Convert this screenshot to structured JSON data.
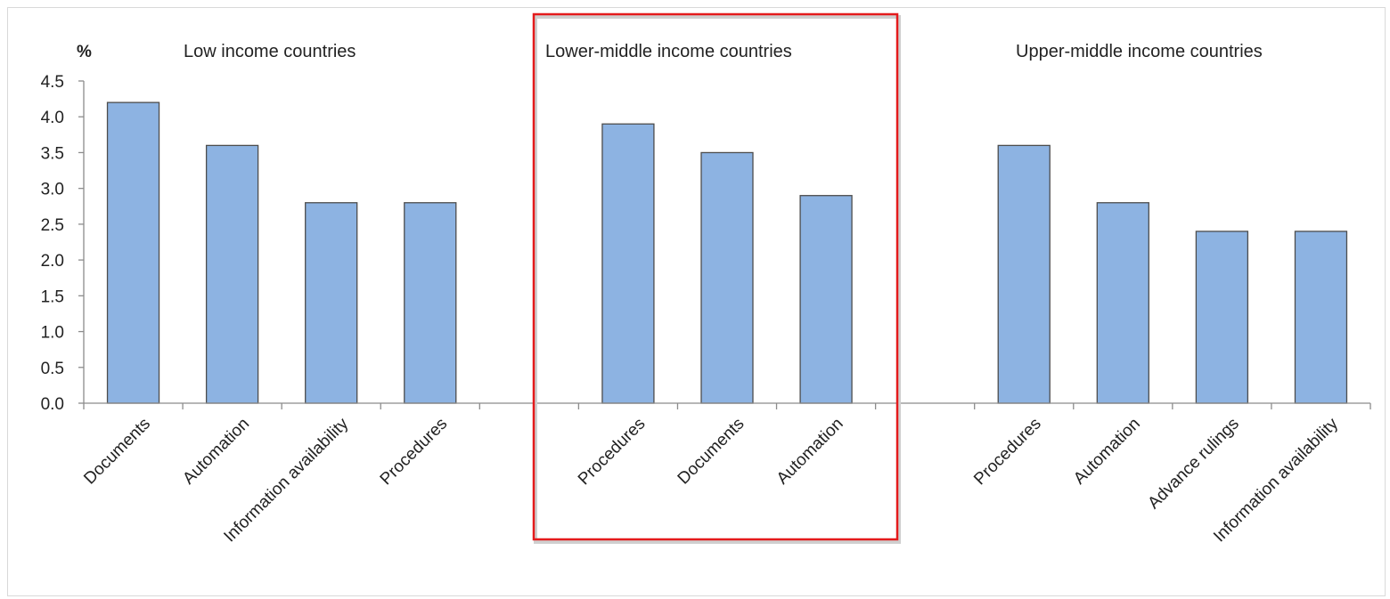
{
  "chart_data": {
    "type": "bar",
    "unit_label": "%",
    "ylim": [
      0,
      4.5
    ],
    "y_ticks": [
      "0.0",
      "0.5",
      "1.0",
      "1.5",
      "2.0",
      "2.5",
      "3.0",
      "3.5",
      "4.0",
      "4.5"
    ],
    "grid": false,
    "colors": {
      "bar_fill": "#8db3e2",
      "bar_stroke": "#4d4d4d",
      "axis": "#8c8c8c",
      "highlight_box": "#e41a1c"
    },
    "highlighted_group": "Lower-middle income countries",
    "groups": [
      {
        "title": "Low income countries",
        "categories": [
          "Documents",
          "Automation",
          "Information availability",
          "Procedures"
        ],
        "values": [
          4.2,
          3.6,
          2.8,
          2.8
        ]
      },
      {
        "title": "Lower-middle income countries",
        "categories": [
          "Procedures",
          "Documents",
          "Automation"
        ],
        "values": [
          3.9,
          3.5,
          2.9
        ]
      },
      {
        "title": "Upper-middle income countries",
        "categories": [
          "Procedures",
          "Automation",
          "Advance rulings",
          "Information availability"
        ],
        "values": [
          3.6,
          2.8,
          2.4,
          2.4
        ]
      }
    ]
  }
}
